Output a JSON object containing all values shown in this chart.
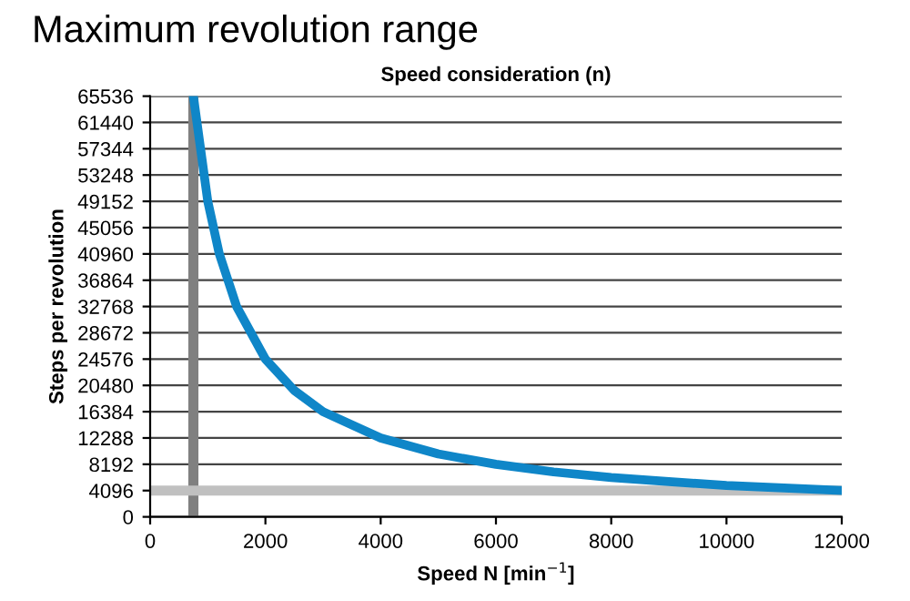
{
  "chart_data": {
    "type": "line",
    "title": "Maximum revolution range",
    "subtitle": "Speed consideration (n)",
    "xlabel": "Speed N [min$^{−1}$]",
    "ylabel": "Steps per revolution",
    "x": [
      750,
      1000,
      1200,
      1500,
      2000,
      2500,
      3000,
      4000,
      5000,
      6000,
      7000,
      8000,
      9000,
      10000,
      11000,
      12000
    ],
    "series": [
      {
        "color": "#0f86c8",
        "values": [
          65536,
          49152,
          40960,
          32768,
          24576,
          19700,
          16384,
          12288,
          9800,
          8192,
          7000,
          6144,
          5500,
          4900,
          4500,
          4096
        ]
      }
    ],
    "xlim": [
      0,
      12000
    ],
    "xticks": [
      0,
      2000,
      4000,
      6000,
      8000,
      10000,
      12000
    ],
    "ylim": [
      0,
      65536
    ],
    "yticks": [
      0,
      4096,
      8192,
      12288,
      16384,
      20480,
      24576,
      28672,
      32768,
      36864,
      40960,
      45056,
      49152,
      53248,
      57344,
      61440,
      65536
    ],
    "grid": "y",
    "marker": "none",
    "line_style": "solid",
    "ref_lines": [
      {
        "axis": "x",
        "value": 750,
        "color": "#808080"
      },
      {
        "axis": "y",
        "value": 4096,
        "color": "#c0c0c0"
      }
    ]
  }
}
